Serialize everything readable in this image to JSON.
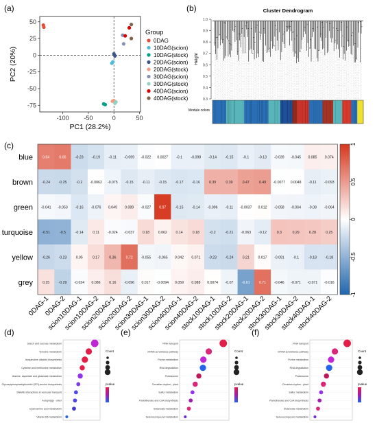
{
  "panels": {
    "a": "(a)",
    "b": "(b)",
    "c": "(c)",
    "d": "(d)",
    "e": "(e)",
    "f": "(f)"
  },
  "chart_data": [
    {
      "panel": "a",
      "type": "scatter",
      "xlabel": "PC1 (28.2%)",
      "ylabel": "PC2 (20%)",
      "xlim": [
        -145,
        52
      ],
      "ylim": [
        -85,
        58
      ],
      "xticks": [
        -100,
        -50,
        0,
        50
      ],
      "yticks": [
        -75,
        -50,
        -25,
        0,
        25,
        50
      ],
      "xtick_labels": [
        "-100",
        "-50",
        "0",
        "50"
      ],
      "ytick_labels": [
        "-75",
        "-50",
        "-25",
        "0",
        "25",
        "50"
      ],
      "legend_title": "Group",
      "legend_position": "right",
      "series": [
        {
          "name": "0DAG",
          "color": "#e64b35",
          "points": [
            [
              -138,
              45
            ],
            [
              -137,
              42
            ]
          ]
        },
        {
          "name": "10DAG(scion)",
          "color": "#4dbbd5",
          "points": [
            [
              -4,
              -12
            ],
            [
              -2,
              -10
            ]
          ]
        },
        {
          "name": "10DAG(stock)",
          "color": "#00a087",
          "points": [
            [
              -20,
              -73
            ],
            [
              -17,
              -74
            ]
          ]
        },
        {
          "name": "20DAG(scion)",
          "color": "#3c5488",
          "points": [
            [
              0,
              2
            ],
            [
              2,
              -1
            ]
          ]
        },
        {
          "name": "20DAG(stock)",
          "color": "#f39b7f",
          "points": [
            [
              -3,
              -69
            ],
            [
              0,
              -68
            ]
          ]
        },
        {
          "name": "30DAG(scion)",
          "color": "#8491b4",
          "points": [
            [
              17,
              30
            ],
            [
              19,
              17
            ]
          ]
        },
        {
          "name": "30DAG(stock)",
          "color": "#91d1c2",
          "points": [
            [
              4,
              -70
            ],
            [
              2,
              -72
            ]
          ]
        },
        {
          "name": "40DAG(scion)",
          "color": "#dc0000",
          "points": [
            [
              30,
              41
            ],
            [
              22,
              29
            ]
          ]
        },
        {
          "name": "40DAG(stock)",
          "color": "#7e6148",
          "points": [
            [
              34,
              46
            ],
            [
              34,
              25
            ]
          ]
        }
      ]
    },
    {
      "panel": "b",
      "type": "dendrogram",
      "title": "Cluster Dendrogram",
      "ylabel": "Height",
      "ylim": [
        0.3,
        1.0
      ],
      "yticks": [
        0.3,
        0.4,
        0.5,
        0.6,
        0.7,
        0.8,
        0.9,
        1.0
      ],
      "ytick_labels": [
        "0.3",
        "0.4",
        "0.5",
        "0.6",
        "0.7",
        "0.8",
        "0.9",
        "1.0"
      ],
      "color_bar_label": "Module colors",
      "module_color_segments": [
        {
          "color": "#2a6fb6",
          "fraction": 0.09
        },
        {
          "color": "#58b5ba",
          "fraction": 0.12
        },
        {
          "color": "#2a6fb6",
          "fraction": 0.16
        },
        {
          "color": "#58b5ba",
          "fraction": 0.08
        },
        {
          "color": "#1f4f97",
          "fraction": 0.08
        },
        {
          "color": "#8f2b1c",
          "fraction": 0.03
        },
        {
          "color": "#c9342b",
          "fraction": 0.08
        },
        {
          "color": "#2a6fb6",
          "fraction": 0.09
        },
        {
          "color": "#a63425",
          "fraction": 0.07
        },
        {
          "color": "#58b5ba",
          "fraction": 0.06
        },
        {
          "color": "#d63a2c",
          "fraction": 0.06
        },
        {
          "color": "#2a6fb6",
          "fraction": 0.04
        },
        {
          "color": "#f0e030",
          "fraction": 0.04
        }
      ]
    },
    {
      "panel": "c",
      "type": "heatmap",
      "rows": [
        "blue",
        "brown",
        "green",
        "turquoise",
        "yellow",
        "grey"
      ],
      "columns": [
        "0DAG-1",
        "0DAG-2",
        "scion10DAG-1",
        "scion10DAG-2",
        "scion20DAG-1",
        "scion20DAG-2",
        "scion30DAG-1",
        "scion30DAG-2",
        "scion40DAG-1",
        "scion40DAG-2",
        "stock10DAG-1",
        "stock10DAG-2",
        "stock20DAG-1",
        "stock20DAG-2",
        "stock30DAG-1",
        "stock30DAG-2",
        "stock40DAG-1",
        "stock40DAG-2"
      ],
      "values": [
        [
          0.64,
          0.66,
          -0.23,
          -0.19,
          -0.11,
          -0.099,
          -0.022,
          0.0027,
          -0.1,
          -0.098,
          -0.14,
          -0.15,
          -0.1,
          -0.13,
          -0.039,
          -0.045,
          0.085,
          0.074
        ],
        [
          -0.24,
          -0.25,
          -0.2,
          -0.0062,
          -0.075,
          -0.15,
          -0.11,
          -0.15,
          -0.17,
          -0.16,
          0.39,
          0.39,
          0.47,
          0.49,
          -0.0077,
          0.0048,
          -0.11,
          -0.093
        ],
        [
          -0.041,
          -0.053,
          -0.16,
          -0.076,
          0.049,
          0.089,
          -0.027,
          0.97,
          -0.15,
          -0.14,
          -0.096,
          -0.11,
          -0.0037,
          0.012,
          -0.058,
          -0.064,
          -0.08,
          -0.064
        ],
        [
          -0.51,
          -0.5,
          -0.14,
          0.11,
          -0.024,
          -0.037,
          0.18,
          0.062,
          0.14,
          0.18,
          -0.2,
          -0.21,
          -0.063,
          -0.12,
          0.3,
          0.29,
          0.28,
          0.25
        ],
        [
          -0.26,
          -0.23,
          0.05,
          0.17,
          0.36,
          0.72,
          -0.055,
          -0.065,
          0.042,
          0.071,
          -0.23,
          -0.24,
          0.21,
          0.017,
          -0.091,
          -0.1,
          -0.18,
          -0.18
        ],
        [
          0.15,
          -0.29,
          -0.024,
          0.086,
          0.16,
          -0.096,
          0.017,
          -0.0094,
          0.059,
          0.088,
          0.0074,
          -0.07,
          -0.61,
          0.71,
          -0.046,
          -0.071,
          -0.071,
          -0.016
        ]
      ],
      "labels": [
        [
          "0.64",
          "0.66",
          "-0.23",
          "-0.19",
          "-0.11",
          "-0.099",
          "-0.022",
          "0.0027",
          "-0.1",
          "-0.098",
          "-0.14",
          "-0.15",
          "-0.1",
          "-0.13",
          "-0.039",
          "-0.045",
          "0.085",
          "0.074"
        ],
        [
          "-0.24",
          "-0.25",
          "-0.2",
          "-0.0062",
          "-0.075",
          "-0.15",
          "-0.11",
          "-0.15",
          "-0.17",
          "-0.16",
          "0.39",
          "0.39",
          "0.47",
          "0.49",
          "-0.0077",
          "0.0048",
          "-0.11",
          "-0.093"
        ],
        [
          "-0.041",
          "-0.053",
          "-0.16",
          "-0.076",
          "0.049",
          "0.089",
          "-0.027",
          "0.97",
          "-0.15",
          "-0.14",
          "-0.096",
          "-0.11",
          "-0.0037",
          "0.012",
          "-0.058",
          "-0.064",
          "-0.08",
          "-0.064"
        ],
        [
          "-0.51",
          "-0.5",
          "-0.14",
          "0.11",
          "-0.024",
          "-0.037",
          "0.18",
          "0.062",
          "0.14",
          "0.18",
          "-0.2",
          "-0.21",
          "-0.063",
          "-0.12",
          "0.3",
          "0.29",
          "0.28",
          "0.25"
        ],
        [
          "-0.26",
          "-0.23",
          "0.05",
          "0.17",
          "0.36",
          "0.72",
          "-0.055",
          "-0.065",
          "0.042",
          "0.071",
          "-0.23",
          "-0.24",
          "0.21",
          "0.017",
          "-0.091",
          "-0.1",
          "-0.18",
          "-0.18"
        ],
        [
          "0.15",
          "-0.29",
          "-0.024",
          "0.086",
          "0.16",
          "-0.096",
          "0.017",
          "-0.0094",
          "0.059",
          "0.088",
          "0.0074",
          "-0.07",
          "-0.61",
          "0.71",
          "-0.046",
          "-0.071",
          "-0.071",
          "-0.016"
        ]
      ],
      "color_scale": {
        "min": -1,
        "max": 1,
        "low": "#2166ac",
        "mid": "#ffffff",
        "high": "#d6371e"
      },
      "colorbar_ticks": [
        1,
        0.5,
        0,
        -0.5,
        -1
      ],
      "colorbar_tick_labels": [
        "1",
        "0.5",
        "0",
        "-0.5",
        "-1"
      ]
    },
    {
      "panel": "d",
      "type": "scatter",
      "subtype": "dot-plot",
      "categories": [
        "Starch and sucrose metabolism",
        "Tyrosine metabolism",
        "Isoquinoline alkaloid biosynthesis",
        "Cysteine and methionine metabolism",
        "Alanine, aspartate and glutamate metabolism",
        "Glycosylphosphatidylinositol (GPI)-anchor biosynthesis",
        "SNARE interactions in vesicular transport",
        "Autophagy - other",
        "Cyanoamino acid metabolism",
        "Vitamin B6 metabolism"
      ],
      "x": [
        0.9,
        0.72,
        0.6,
        0.52,
        0.46,
        0.4,
        0.33,
        0.3,
        0.27,
        0.05
      ],
      "sizes": [
        5,
        4,
        4,
        3,
        3,
        2,
        2,
        2,
        2,
        1
      ],
      "colors": [
        "#c026d3",
        "#e11d48",
        "#e11d48",
        "#e11d48",
        "#9333ea",
        "#7c3aed",
        "#4f46e5",
        "#4f46e5",
        "#4338ca",
        "#2563eb"
      ],
      "legend": {
        "count_title": "Count",
        "p_title": "pvalue"
      }
    },
    {
      "panel": "e",
      "type": "scatter",
      "subtype": "dot-plot",
      "categories": [
        "RNA transport",
        "mRNA surveillance pathway",
        "Purine metabolism",
        "RNA degradation",
        "Proteasome",
        "Circadian rhythm - plant",
        "Sulfur metabolism",
        "Pantothenate and CoA biosynthesis",
        "Butanoate metabolism",
        "Selenocompound metabolism"
      ],
      "x": [
        0.92,
        0.6,
        0.48,
        0.47,
        0.38,
        0.3,
        0.24,
        0.2,
        0.16,
        0.08
      ],
      "sizes": [
        5,
        4,
        4,
        4,
        3,
        3,
        2,
        2,
        2,
        1
      ],
      "colors": [
        "#e11d48",
        "#db2777",
        "#c026d3",
        "#2563eb",
        "#be185d",
        "#db2777",
        "#9333ea",
        "#a21caf",
        "#db2777",
        "#6d28d9"
      ],
      "legend": {
        "count_title": "Count",
        "p_title": "pvalue"
      }
    },
    {
      "panel": "f",
      "type": "scatter",
      "subtype": "dot-plot",
      "categories": [
        "RNA transport",
        "mRNA surveillance pathway",
        "Purine metabolism",
        "RNA degradation",
        "Proteasome",
        "Circadian rhythm - plant",
        "Sulfur metabolism",
        "Pantothenate and CoA biosynthesis",
        "Butanoate metabolism",
        "Selenocompound metabolism"
      ],
      "x": [
        0.92,
        0.6,
        0.5,
        0.45,
        0.38,
        0.3,
        0.24,
        0.2,
        0.16,
        0.08
      ],
      "sizes": [
        5,
        4,
        4,
        4,
        3,
        3,
        2,
        2,
        2,
        1
      ],
      "colors": [
        "#e11d48",
        "#db2777",
        "#c026d3",
        "#2563eb",
        "#be185d",
        "#db2777",
        "#9333ea",
        "#a21caf",
        "#db2777",
        "#6d28d9"
      ],
      "legend": {
        "count_title": "Count",
        "p_title": "pvalue"
      }
    }
  ]
}
